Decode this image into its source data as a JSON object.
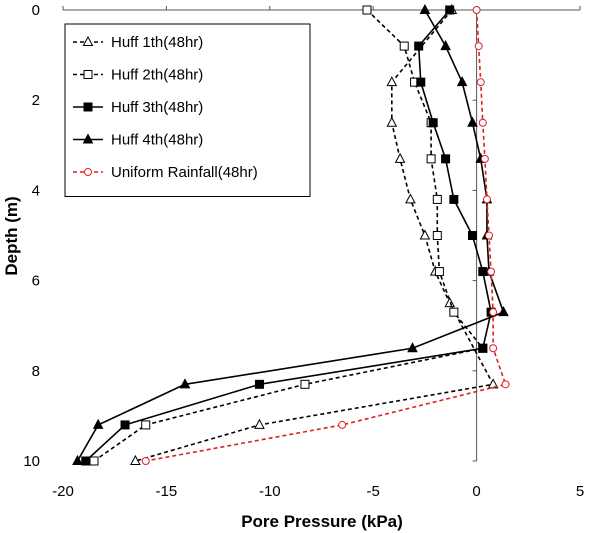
{
  "chart_data": {
    "type": "line",
    "title": "",
    "xlabel": "Pore Pressure (kPa)",
    "ylabel": "Depth (m)",
    "xlim": [
      -20,
      5
    ],
    "ylim": [
      0,
      10
    ],
    "y_inverted": true,
    "x_axis_position": "top",
    "x_ticks": [
      -20,
      -15,
      -10,
      -5,
      0,
      5
    ],
    "y_ticks": [
      0,
      2,
      4,
      6,
      8,
      10
    ],
    "grid": false,
    "legend_position": "top-left",
    "series": [
      {
        "name": "Huff 1th(48hr)",
        "color": "#000000",
        "line_style": "dashed",
        "marker": "open-triangle",
        "points": [
          [
            -1.2,
            0
          ],
          [
            -4.1,
            1.6
          ],
          [
            -4.1,
            2.5
          ],
          [
            -3.7,
            3.3
          ],
          [
            -3.2,
            4.2
          ],
          [
            -2.5,
            5.0
          ],
          [
            -2.0,
            5.8
          ],
          [
            -1.3,
            6.5
          ],
          [
            0.8,
            8.3
          ],
          [
            -10.5,
            9.2
          ],
          [
            -16.5,
            10.0
          ]
        ]
      },
      {
        "name": "Huff 2th(48hr)",
        "color": "#000000",
        "line_style": "dashed",
        "marker": "open-square",
        "points": [
          [
            -5.3,
            0
          ],
          [
            -3.5,
            0.8
          ],
          [
            -3.0,
            1.6
          ],
          [
            -2.2,
            2.5
          ],
          [
            -2.2,
            3.3
          ],
          [
            -1.9,
            4.2
          ],
          [
            -1.9,
            5.0
          ],
          [
            -1.8,
            5.8
          ],
          [
            -1.1,
            6.7
          ],
          [
            0.3,
            7.5
          ],
          [
            -8.3,
            8.3
          ],
          [
            -16.0,
            9.2
          ],
          [
            -18.5,
            10.0
          ]
        ]
      },
      {
        "name": "Huff 3th(48hr)",
        "color": "#000000",
        "line_style": "solid",
        "marker": "filled-square",
        "points": [
          [
            -1.3,
            0
          ],
          [
            -2.8,
            0.8
          ],
          [
            -2.7,
            1.6
          ],
          [
            -2.1,
            2.5
          ],
          [
            -1.5,
            3.3
          ],
          [
            -1.1,
            4.2
          ],
          [
            -0.2,
            5.0
          ],
          [
            0.3,
            5.8
          ],
          [
            0.7,
            6.7
          ],
          [
            0.3,
            7.5
          ],
          [
            -10.5,
            8.3
          ],
          [
            -17.0,
            9.2
          ],
          [
            -18.9,
            10.0
          ]
        ]
      },
      {
        "name": "Huff 4th(48hr)",
        "color": "#000000",
        "line_style": "solid",
        "marker": "filled-triangle",
        "points": [
          [
            -2.5,
            0
          ],
          [
            -1.5,
            0.8
          ],
          [
            -0.7,
            1.6
          ],
          [
            -0.2,
            2.5
          ],
          [
            0.2,
            3.3
          ],
          [
            0.5,
            4.2
          ],
          [
            0.5,
            5.0
          ],
          [
            0.6,
            5.8
          ],
          [
            1.3,
            6.7
          ],
          [
            -3.1,
            7.5
          ],
          [
            -14.1,
            8.3
          ],
          [
            -18.3,
            9.2
          ],
          [
            -19.3,
            10.0
          ]
        ]
      },
      {
        "name": "Uniform Rainfall(48hr)",
        "color": "#e02020",
        "line_style": "dashed",
        "marker": "open-circle",
        "points": [
          [
            0.0,
            0
          ],
          [
            0.1,
            0.8
          ],
          [
            0.2,
            1.6
          ],
          [
            0.3,
            2.5
          ],
          [
            0.4,
            3.3
          ],
          [
            0.5,
            4.2
          ],
          [
            0.6,
            5.0
          ],
          [
            0.7,
            5.8
          ],
          [
            0.8,
            6.7
          ],
          [
            0.8,
            7.5
          ],
          [
            1.4,
            8.3
          ],
          [
            -6.5,
            9.2
          ],
          [
            -16.0,
            10.0
          ]
        ]
      }
    ]
  }
}
